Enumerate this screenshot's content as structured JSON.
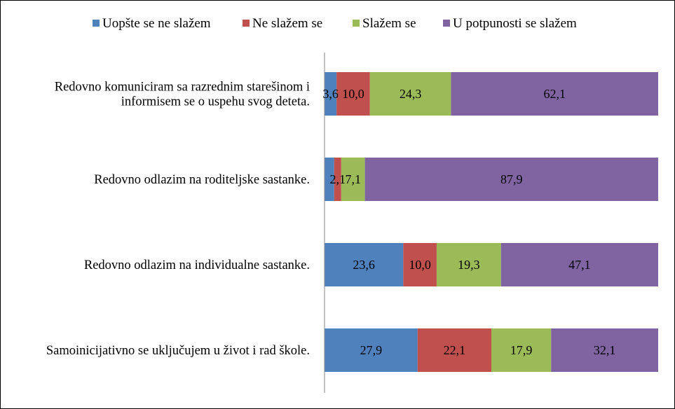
{
  "chart_data": {
    "type": "bar",
    "orientation": "horizontal",
    "stacked": true,
    "percent_stacked": true,
    "categories": [
      [
        "Redovno komuniciram sa razrednim starešinom i",
        "informisem se o uspehu svog deteta."
      ],
      [
        "Redovno odlazim na roditeljske sastanke."
      ],
      [
        "Redovno odlazim na individualne sastanke."
      ],
      [
        "Samoinicijativno se uključujem u život i rad škole."
      ]
    ],
    "series": [
      {
        "name": "Uopšte se ne slažem",
        "color": "#4F81BD",
        "values": [
          3.6,
          2.9,
          23.6,
          27.9
        ],
        "labels": [
          "3,6",
          "",
          "23,6",
          "27,9"
        ]
      },
      {
        "name": "Ne slažem se",
        "color": "#C0504D",
        "values": [
          10.0,
          2.1,
          10.0,
          22.1
        ],
        "labels": [
          "10,0",
          "2,1",
          "10,0",
          "22,1"
        ]
      },
      {
        "name": "Slažem se",
        "color": "#9BBB59",
        "values": [
          24.3,
          7.1,
          19.3,
          17.9
        ],
        "labels": [
          "24,3",
          "7,1",
          "19,3",
          "17,9"
        ]
      },
      {
        "name": "U potpunosti se slažem",
        "color": "#8064A2",
        "values": [
          62.1,
          87.9,
          47.1,
          32.1
        ],
        "labels": [
          "62,1",
          "87,9",
          "47,1",
          "32,1"
        ]
      }
    ],
    "xlim": [
      0,
      100
    ],
    "legend_position": "top",
    "grid": false
  }
}
